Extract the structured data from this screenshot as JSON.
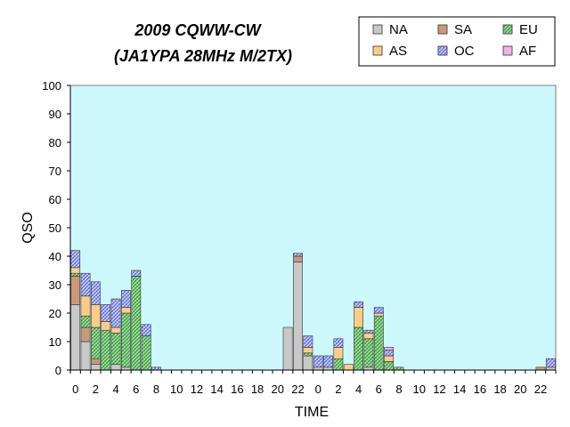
{
  "chart_data": {
    "type": "bar",
    "stacked": true,
    "title": [
      "2009 CQWW-CW",
      "(JA1YPA  28MHz M/2TX)"
    ],
    "xlabel": "TIME",
    "ylabel": "QSO",
    "ylim": [
      0,
      100
    ],
    "yticks": [
      0,
      10,
      20,
      30,
      40,
      50,
      60,
      70,
      80,
      90,
      100
    ],
    "grid": false,
    "legend_position": "top-right",
    "categories": [
      "0",
      "1",
      "2",
      "3",
      "4",
      "5",
      "6",
      "7",
      "8",
      "9",
      "10",
      "11",
      "12",
      "13",
      "14",
      "15",
      "16",
      "17",
      "18",
      "19",
      "20",
      "21",
      "22",
      "23",
      "0",
      "1",
      "2",
      "3",
      "4",
      "5",
      "6",
      "7",
      "8",
      "9",
      "10",
      "11",
      "12",
      "13",
      "14",
      "15",
      "16",
      "17",
      "18",
      "19",
      "20",
      "21",
      "22",
      "23"
    ],
    "xtick_labels": [
      "0",
      "2",
      "4",
      "6",
      "8",
      "10",
      "12",
      "14",
      "16",
      "18",
      "20",
      "22",
      "0",
      "2",
      "4",
      "6",
      "8",
      "10",
      "12",
      "14",
      "16",
      "18",
      "20",
      "22"
    ],
    "series": [
      {
        "name": "NA",
        "color": "#c8c8c8",
        "pattern": "solid",
        "values": [
          23,
          10,
          2,
          0,
          2,
          1,
          0,
          0,
          0,
          0,
          0,
          0,
          0,
          0,
          0,
          0,
          0,
          0,
          0,
          0,
          0,
          15,
          38,
          5,
          1,
          1,
          0,
          0,
          0,
          1,
          0,
          0,
          0,
          0,
          0,
          0,
          0,
          0,
          0,
          0,
          0,
          0,
          0,
          0,
          0,
          0,
          0,
          1
        ]
      },
      {
        "name": "SA",
        "color": "#c99a7a",
        "pattern": "solid",
        "values": [
          10,
          5,
          2,
          0,
          0,
          0,
          0,
          0,
          0,
          0,
          0,
          0,
          0,
          0,
          0,
          0,
          0,
          0,
          0,
          0,
          0,
          0,
          2,
          0,
          0,
          0,
          0,
          0,
          0,
          0,
          0,
          0,
          0,
          0,
          0,
          0,
          0,
          0,
          0,
          0,
          0,
          0,
          0,
          0,
          0,
          0,
          1,
          0
        ]
      },
      {
        "name": "EU",
        "color": "#7fd17f",
        "pattern": "hatch",
        "values": [
          1,
          4,
          11,
          14,
          11,
          19,
          33,
          12,
          0,
          0,
          0,
          0,
          0,
          0,
          0,
          0,
          0,
          0,
          0,
          0,
          0,
          0,
          0,
          1,
          0,
          0,
          4,
          0,
          15,
          10,
          19,
          3,
          1,
          0,
          0,
          0,
          0,
          0,
          0,
          0,
          0,
          0,
          0,
          0,
          0,
          0,
          0,
          0
        ]
      },
      {
        "name": "AS",
        "color": "#ffcc88",
        "pattern": "solid",
        "values": [
          2,
          7,
          8,
          3,
          2,
          2,
          0,
          0,
          0,
          0,
          0,
          0,
          0,
          0,
          0,
          0,
          0,
          0,
          0,
          0,
          0,
          0,
          0,
          2,
          0,
          0,
          4,
          2,
          7,
          2,
          1,
          2,
          0,
          0,
          0,
          0,
          0,
          0,
          0,
          0,
          0,
          0,
          0,
          0,
          0,
          0,
          0,
          0
        ]
      },
      {
        "name": "OC",
        "color": "#aab4f0",
        "pattern": "hatch",
        "values": [
          6,
          8,
          8,
          6,
          10,
          6,
          2,
          4,
          1,
          0,
          0,
          0,
          0,
          0,
          0,
          0,
          0,
          0,
          0,
          0,
          0,
          0,
          1,
          4,
          4,
          4,
          3,
          0,
          2,
          1,
          2,
          2,
          0,
          0,
          0,
          0,
          0,
          0,
          0,
          0,
          0,
          0,
          0,
          0,
          0,
          0,
          0,
          3
        ]
      },
      {
        "name": "AF",
        "color": "#f0b4e6",
        "pattern": "solid",
        "values": [
          0,
          0,
          0,
          0,
          0,
          0,
          0,
          0,
          0,
          0,
          0,
          0,
          0,
          0,
          0,
          0,
          0,
          0,
          0,
          0,
          0,
          0,
          0,
          0,
          0,
          0,
          0,
          0,
          0,
          0,
          0,
          1,
          0,
          0,
          0,
          0,
          0,
          0,
          0,
          0,
          0,
          0,
          0,
          0,
          0,
          0,
          0,
          0
        ]
      }
    ]
  }
}
